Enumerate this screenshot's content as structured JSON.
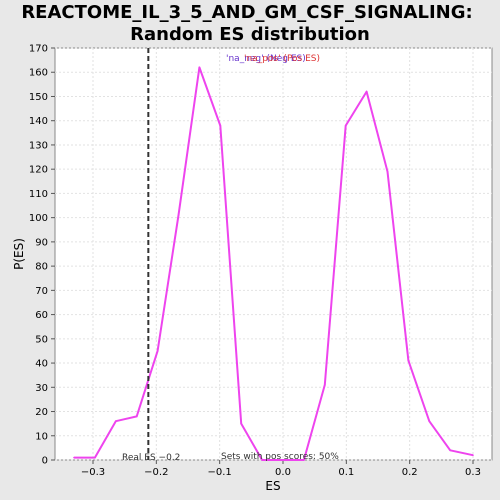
{
  "chart_data": {
    "type": "line",
    "title_line1": "REACTOME_IL_3_5_AND_GM_CSF_SIGNALING:",
    "title_line2": "Random ES distribution",
    "xlabel": "ES",
    "ylabel": "P(ES)",
    "xlim": [
      -0.36,
      0.33
    ],
    "ylim": [
      0,
      170
    ],
    "x_ticks": [
      -0.3,
      -0.2,
      -0.1,
      0.0,
      0.1,
      0.2,
      0.3
    ],
    "x_tick_labels": [
      "−0.3",
      "−0.2",
      "−0.1",
      "0.0",
      "0.1",
      "0.2",
      "0.3"
    ],
    "y_ticks": [
      0,
      10,
      20,
      30,
      40,
      50,
      60,
      70,
      80,
      90,
      100,
      110,
      120,
      130,
      140,
      150,
      160,
      170
    ],
    "grid": true,
    "series": [
      {
        "color": "#ee44ee",
        "x": [
          -0.33,
          -0.297,
          -0.264,
          -0.231,
          -0.198,
          -0.165,
          -0.132,
          -0.099,
          -0.066,
          -0.033,
          0.0,
          0.033,
          0.066,
          0.099,
          0.132,
          0.165,
          0.198,
          0.231,
          0.264,
          0.3
        ],
        "y": [
          1,
          1,
          16,
          18,
          45,
          101,
          162,
          138,
          15,
          0,
          0,
          0,
          31,
          138,
          152,
          119,
          41,
          16,
          4,
          2
        ]
      }
    ],
    "real_es": {
      "value": -0.2,
      "label": "Real ES −0.2"
    },
    "legend": {
      "placement": "top-center",
      "entries": [
        {
          "text": "'na_neg' (Neg ES)",
          "color": "#6633cc"
        },
        {
          "text": "'na_pos' (Pos ES)",
          "color": "#dd3333"
        }
      ]
    },
    "annotation": "Sets with pos scores: 50%"
  }
}
